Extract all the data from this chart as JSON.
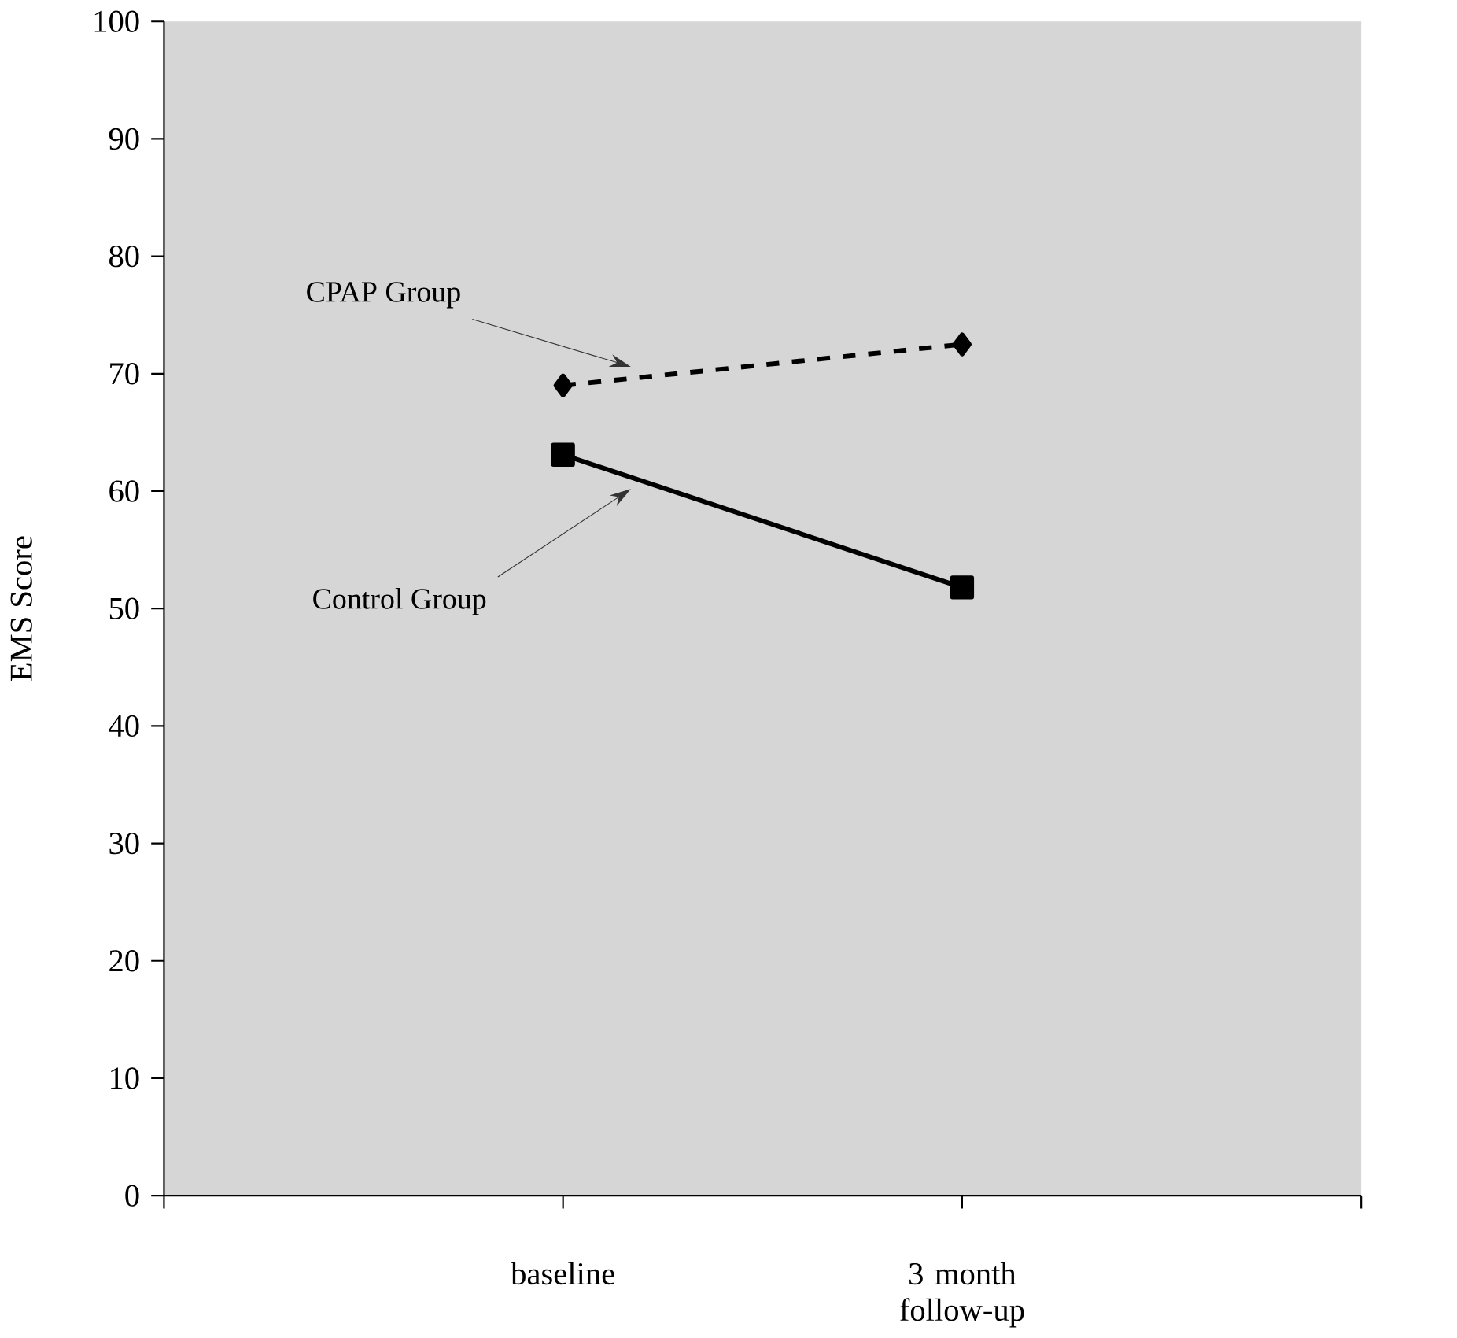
{
  "chart_data": {
    "type": "line",
    "ylabel": "EMS Score",
    "categories": [
      "baseline",
      "3 month follow-up"
    ],
    "series": [
      {
        "name": "CPAP Group",
        "color": "#000000",
        "values": [
          69.0,
          72.5
        ],
        "marker": "diamond",
        "line_style": "dashed"
      },
      {
        "name": "Control Group",
        "color": "#000000",
        "values": [
          63.1,
          51.8
        ],
        "marker": "square",
        "line_style": "solid"
      }
    ],
    "ylim": [
      0,
      100
    ],
    "yticks": [
      0,
      10,
      20,
      30,
      40,
      50,
      60,
      70,
      80,
      90,
      100
    ],
    "grid": false,
    "legend": false
  }
}
